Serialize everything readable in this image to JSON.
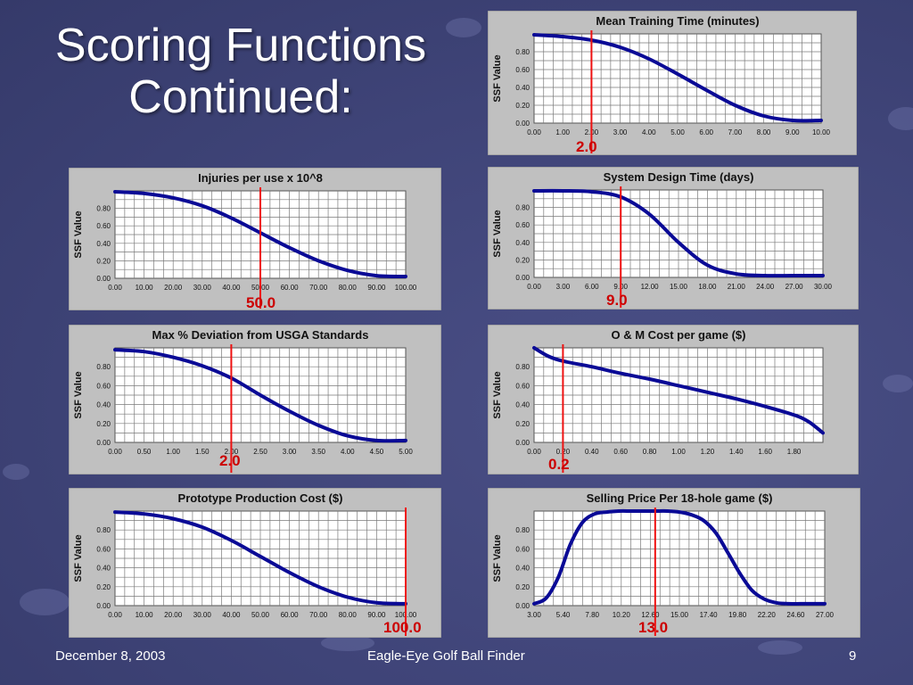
{
  "slide": {
    "title_line1": "Scoring Functions",
    "title_line2": "Continued:",
    "footer_date": "December 8, 2003",
    "footer_center": "Eagle-Eye Golf Ball Finder",
    "page_number": "9"
  },
  "colors": {
    "curve": "#0a0a96",
    "marker": "#ee1111",
    "panel": "#c0c0c0",
    "marker_label": "#cc0000"
  },
  "chart_data": [
    {
      "type": "line",
      "title": "Mean Training Time (minutes)",
      "ylabel": "SSF Value",
      "xlim": [
        0,
        10
      ],
      "ylim": [
        0,
        1
      ],
      "xticks": [
        "0.00",
        "1.00",
        "2.00",
        "3.00",
        "4.00",
        "5.00",
        "6.00",
        "7.00",
        "8.00",
        "9.00",
        "10.00"
      ],
      "yticks": [
        "0.00",
        "0.20",
        "0.40",
        "0.60",
        "0.80"
      ],
      "grid": true,
      "x": [
        0,
        1,
        2,
        3,
        4,
        5,
        6,
        7,
        8,
        9,
        10
      ],
      "y": [
        0.99,
        0.97,
        0.93,
        0.85,
        0.72,
        0.55,
        0.37,
        0.2,
        0.08,
        0.03,
        0.03
      ],
      "marker": {
        "x": 2.0,
        "label": "2.0"
      }
    },
    {
      "type": "line",
      "title": "Injuries per use x 10^8",
      "ylabel": "SSF Value",
      "xlim": [
        0,
        100
      ],
      "ylim": [
        0,
        1
      ],
      "xticks": [
        "0.00",
        "10.00",
        "20.00",
        "30.00",
        "40.00",
        "50.00",
        "60.00",
        "70.00",
        "80.00",
        "90.00",
        "100.00"
      ],
      "yticks": [
        "0.00",
        "0.20",
        "0.40",
        "0.60",
        "0.80"
      ],
      "grid": true,
      "x": [
        0,
        10,
        20,
        30,
        40,
        50,
        60,
        70,
        80,
        90,
        100
      ],
      "y": [
        0.99,
        0.97,
        0.92,
        0.83,
        0.69,
        0.52,
        0.35,
        0.2,
        0.09,
        0.03,
        0.02
      ],
      "marker": {
        "x": 50.0,
        "label": "50.0"
      }
    },
    {
      "type": "line",
      "title": "System Design Time (days)",
      "ylabel": "SSF Value",
      "xlim": [
        0,
        30
      ],
      "ylim": [
        0,
        1
      ],
      "xticks": [
        "0.00",
        "3.00",
        "6.00",
        "9.00",
        "12.00",
        "15.00",
        "18.00",
        "21.00",
        "24.00",
        "27.00",
        "30.00"
      ],
      "yticks": [
        "0.00",
        "0.20",
        "0.40",
        "0.60",
        "0.80"
      ],
      "grid": true,
      "x": [
        0,
        3,
        6,
        9,
        12,
        15,
        18,
        21,
        24,
        27,
        30
      ],
      "y": [
        0.99,
        0.99,
        0.98,
        0.92,
        0.72,
        0.4,
        0.14,
        0.04,
        0.02,
        0.02,
        0.02
      ],
      "marker": {
        "x": 9.0,
        "label": "9.0"
      }
    },
    {
      "type": "line",
      "title": "Max % Deviation from USGA Standards",
      "ylabel": "SSF Value",
      "xlim": [
        0,
        5
      ],
      "ylim": [
        0,
        1
      ],
      "xticks": [
        "0.00",
        "0.50",
        "1.00",
        "1.50",
        "2.00",
        "2.50",
        "3.00",
        "3.50",
        "4.00",
        "4.50",
        "5.00"
      ],
      "yticks": [
        "0.00",
        "0.20",
        "0.40",
        "0.60",
        "0.80"
      ],
      "grid": true,
      "x": [
        0,
        0.5,
        1,
        1.5,
        2,
        2.5,
        3,
        3.5,
        4,
        4.5,
        5
      ],
      "y": [
        0.98,
        0.96,
        0.9,
        0.81,
        0.68,
        0.5,
        0.33,
        0.18,
        0.07,
        0.02,
        0.02
      ],
      "marker": {
        "x": 2.0,
        "label": "2.0"
      }
    },
    {
      "type": "line",
      "title": "O & M Cost per game ($)",
      "ylabel": "SSF Value",
      "xlim": [
        0,
        2
      ],
      "ylim": [
        0,
        1
      ],
      "xticks": [
        "0.00",
        "0.20",
        "0.40",
        "0.60",
        "0.80",
        "1.00",
        "1.20",
        "1.40",
        "1.60",
        "1.80"
      ],
      "yticks": [
        "0.00",
        "0.20",
        "0.40",
        "0.60",
        "0.80"
      ],
      "grid": true,
      "x": [
        0,
        0.1,
        0.2,
        0.4,
        0.6,
        0.8,
        1.0,
        1.2,
        1.4,
        1.6,
        1.8,
        1.9,
        2.0
      ],
      "y": [
        1.0,
        0.91,
        0.86,
        0.8,
        0.73,
        0.67,
        0.6,
        0.53,
        0.46,
        0.38,
        0.29,
        0.22,
        0.1
      ],
      "marker": {
        "x": 0.2,
        "label": "0.2"
      }
    },
    {
      "type": "line",
      "title": "Prototype Production Cost ($)",
      "ylabel": "SSF Value",
      "xlim": [
        0,
        100
      ],
      "ylim": [
        0,
        1
      ],
      "xticks": [
        "0.00",
        "10.00",
        "20.00",
        "30.00",
        "40.00",
        "50.00",
        "60.00",
        "70.00",
        "80.00",
        "90.00",
        "100.00"
      ],
      "yticks": [
        "0.00",
        "0.20",
        "0.40",
        "0.60",
        "0.80"
      ],
      "grid": true,
      "x": [
        0,
        10,
        20,
        30,
        40,
        50,
        60,
        70,
        80,
        90,
        100
      ],
      "y": [
        0.99,
        0.97,
        0.92,
        0.83,
        0.69,
        0.52,
        0.35,
        0.2,
        0.09,
        0.03,
        0.02
      ],
      "marker": {
        "x": 100.0,
        "label": "100.0"
      }
    },
    {
      "type": "line",
      "title": "Selling Price Per 18-hole game ($)",
      "ylabel": "SSF Value",
      "xlim": [
        3,
        27
      ],
      "ylim": [
        0,
        1
      ],
      "xticks": [
        "3.00",
        "5.40",
        "7.80",
        "10.20",
        "12.60",
        "15.00",
        "17.40",
        "19.80",
        "22.20",
        "24.60",
        "27.00"
      ],
      "yticks": [
        "0.00",
        "0.20",
        "0.40",
        "0.60",
        "0.80"
      ],
      "grid": true,
      "x": [
        3,
        4,
        5,
        6,
        7,
        8,
        9,
        10,
        11,
        12,
        13,
        14,
        15,
        16,
        17,
        18,
        19,
        20,
        21,
        22,
        23,
        24,
        25,
        26,
        27
      ],
      "y": [
        0.02,
        0.08,
        0.3,
        0.65,
        0.88,
        0.97,
        0.99,
        1.0,
        1.0,
        1.0,
        1.0,
        1.0,
        0.99,
        0.96,
        0.9,
        0.77,
        0.56,
        0.34,
        0.16,
        0.07,
        0.03,
        0.02,
        0.02,
        0.02,
        0.02
      ],
      "marker": {
        "x": 13.0,
        "label": "13.0"
      }
    }
  ]
}
